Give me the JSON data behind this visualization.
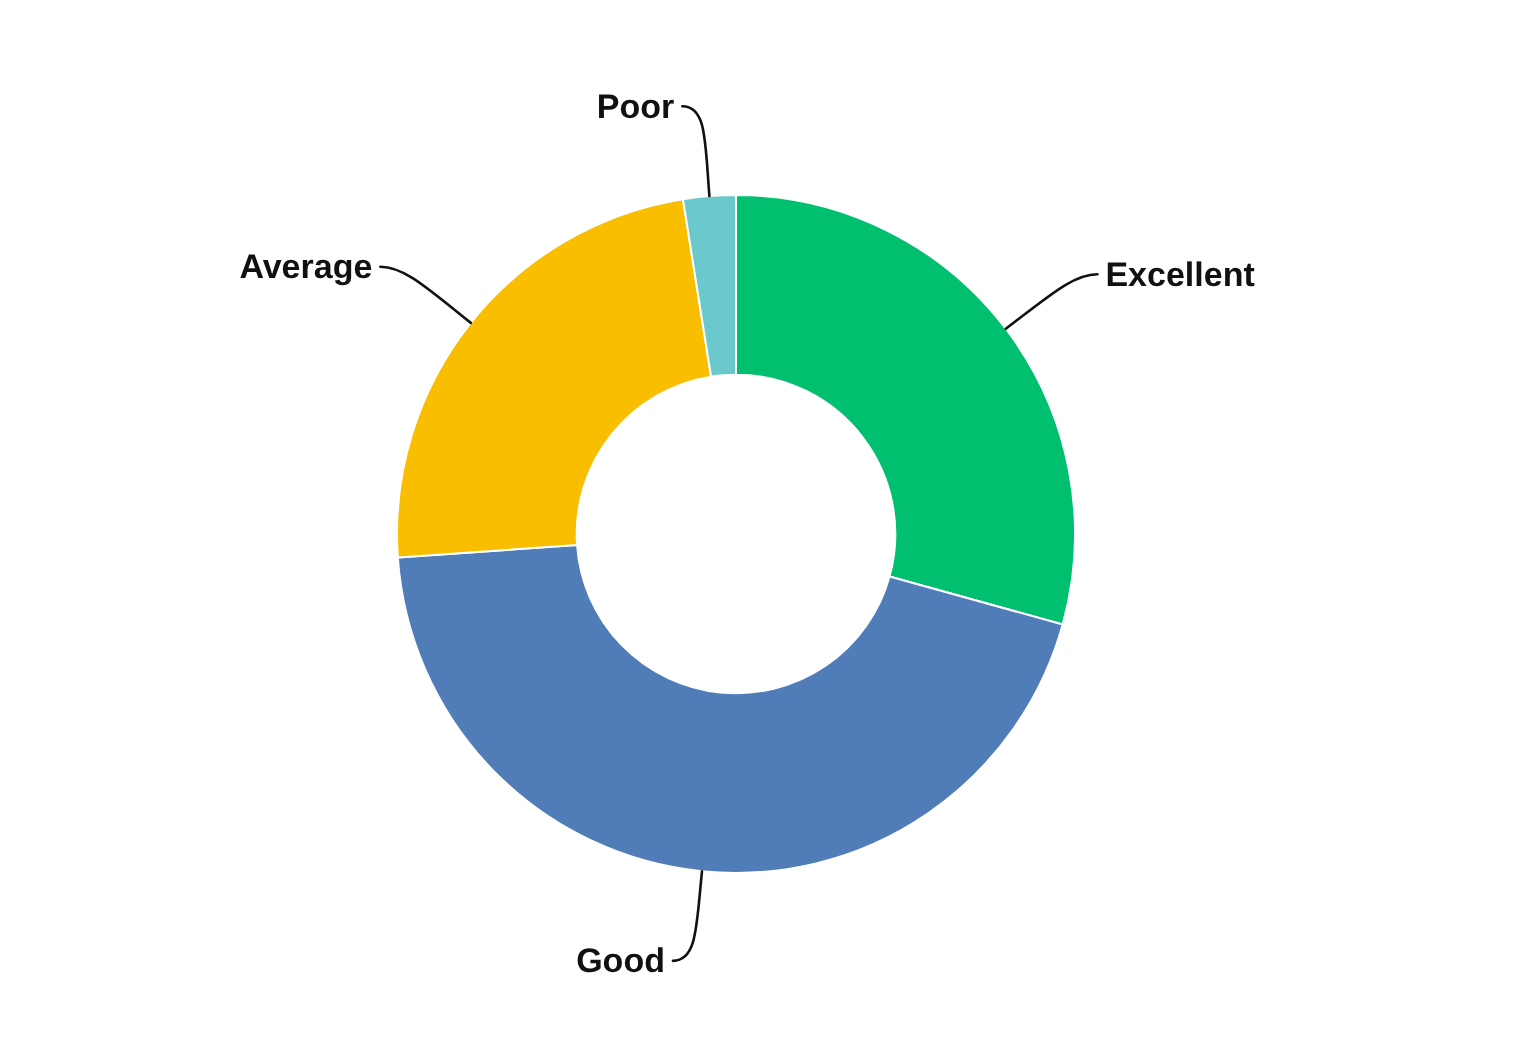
{
  "chart_data": {
    "type": "donut",
    "categories": [
      "Excellent",
      "Good",
      "Average",
      "Poor"
    ],
    "values": [
      29.3,
      44.6,
      23.6,
      2.5
    ],
    "colors": [
      "#00bf6f",
      "#507cb7",
      "#f9be00",
      "#6bc8cd"
    ],
    "legend": false
  }
}
